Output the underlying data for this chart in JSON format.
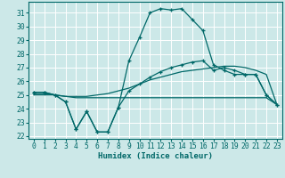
{
  "bg_color": "#cce8e8",
  "line_color": "#006868",
  "grid_color": "#b0d8d8",
  "xlabel": "Humidex (Indice chaleur)",
  "xlim": [
    -0.5,
    23.5
  ],
  "ylim": [
    21.8,
    31.8
  ],
  "yticks": [
    22,
    23,
    24,
    25,
    26,
    27,
    28,
    29,
    30,
    31
  ],
  "xticks": [
    0,
    1,
    2,
    3,
    4,
    5,
    6,
    7,
    8,
    9,
    10,
    11,
    12,
    13,
    14,
    15,
    16,
    17,
    18,
    19,
    20,
    21,
    22,
    23
  ],
  "curve_main_x": [
    0,
    1,
    2,
    3,
    4,
    5,
    6,
    7,
    8,
    9,
    10,
    11,
    12,
    13,
    14,
    15,
    16,
    17,
    18,
    19,
    20,
    21,
    22,
    23
  ],
  "curve_main_y": [
    25.2,
    25.2,
    25.0,
    24.5,
    22.5,
    23.8,
    22.3,
    22.3,
    24.1,
    27.5,
    29.2,
    31.0,
    31.3,
    31.2,
    31.3,
    30.5,
    29.7,
    27.2,
    26.8,
    26.5,
    26.5,
    26.5,
    25.0,
    24.3
  ],
  "curve_noisy_x": [
    0,
    1,
    2,
    3,
    4,
    5,
    6,
    7,
    8,
    9,
    10,
    11,
    12,
    13,
    14,
    15,
    16,
    17,
    18,
    19,
    20,
    21,
    22,
    23
  ],
  "curve_noisy_y": [
    25.2,
    25.2,
    25.0,
    24.5,
    22.5,
    23.8,
    22.3,
    22.3,
    24.1,
    25.3,
    25.8,
    26.3,
    26.7,
    27.0,
    27.2,
    27.4,
    27.5,
    26.8,
    27.0,
    26.8,
    26.5,
    26.5,
    25.0,
    24.3
  ],
  "curve_flat_x": [
    0,
    1,
    2,
    3,
    4,
    5,
    6,
    7,
    8,
    9,
    10,
    11,
    12,
    13,
    14,
    15,
    16,
    17,
    18,
    19,
    20,
    21,
    22,
    23
  ],
  "curve_flat_y": [
    25.0,
    25.0,
    25.0,
    24.9,
    24.8,
    24.8,
    24.8,
    24.8,
    24.8,
    24.8,
    24.8,
    24.8,
    24.8,
    24.8,
    24.8,
    24.8,
    24.8,
    24.8,
    24.8,
    24.8,
    24.8,
    24.8,
    24.8,
    24.3
  ],
  "curve_rise_x": [
    0,
    1,
    2,
    3,
    4,
    5,
    6,
    7,
    8,
    9,
    10,
    11,
    12,
    13,
    14,
    15,
    16,
    17,
    18,
    19,
    20,
    21,
    22,
    23
  ],
  "curve_rise_y": [
    25.1,
    25.1,
    25.0,
    24.9,
    24.9,
    24.9,
    25.0,
    25.1,
    25.3,
    25.5,
    25.8,
    26.1,
    26.3,
    26.5,
    26.7,
    26.8,
    26.9,
    27.0,
    27.1,
    27.1,
    27.0,
    26.8,
    26.5,
    24.3
  ]
}
